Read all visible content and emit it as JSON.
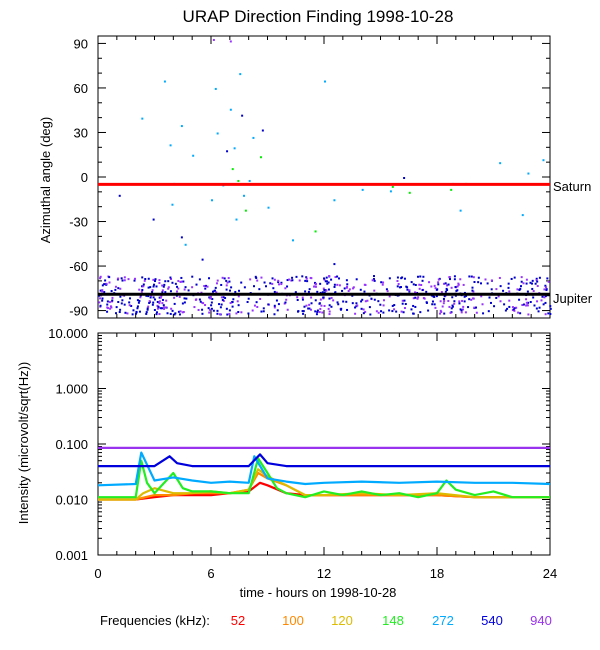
{
  "chart_data": [
    {
      "type": "scatter",
      "title": "URAP Direction Finding  1998-10-28",
      "ylabel": "Azimuthal angle (deg)",
      "xlim": [
        0,
        24
      ],
      "ylim": [
        -95,
        95
      ],
      "yticks": [
        "90",
        "60",
        "30",
        "0",
        "-30",
        "-60",
        "-90"
      ],
      "reference_lines": [
        {
          "label": "Saturn",
          "y": -5,
          "color": "#ff0000"
        },
        {
          "label": "Jupiter",
          "y": -79,
          "color": "#000000"
        }
      ],
      "series": [
        {
          "freq": "272",
          "color": "#00aaff",
          "points": [
            [
              2.3,
              40
            ],
            [
              3.5,
              65
            ],
            [
              3.8,
              22
            ],
            [
              4.0,
              -4
            ],
            [
              3.9,
              -18
            ],
            [
              4.4,
              35
            ],
            [
              4.6,
              -45
            ],
            [
              5.0,
              15
            ],
            [
              6.0,
              -15
            ],
            [
              6.2,
              60
            ],
            [
              6.3,
              30
            ],
            [
              6.6,
              -5
            ],
            [
              7.0,
              46
            ],
            [
              7.2,
              20
            ],
            [
              7.3,
              -28
            ],
            [
              7.5,
              70
            ],
            [
              7.7,
              -12
            ],
            [
              8.0,
              -2
            ],
            [
              8.2,
              27
            ],
            [
              9.0,
              -20
            ],
            [
              10.3,
              -42
            ],
            [
              12.0,
              65
            ],
            [
              12.5,
              -15
            ],
            [
              14.0,
              -8
            ],
            [
              15.5,
              -9
            ],
            [
              18.8,
              -4
            ],
            [
              19.2,
              -22
            ],
            [
              21.3,
              10
            ],
            [
              22.5,
              -25
            ],
            [
              22.8,
              3
            ],
            [
              23.6,
              12
            ]
          ]
        },
        {
          "freq": "540",
          "color": "#0000cc",
          "points": [
            [
              1.1,
              -12
            ],
            [
              2.9,
              -28
            ],
            [
              4.4,
              -40
            ],
            [
              5.5,
              -55
            ],
            [
              6.8,
              18
            ],
            [
              7.6,
              42
            ],
            [
              8.7,
              32
            ],
            [
              12.5,
              -58
            ],
            [
              16.2,
              0
            ]
          ]
        },
        {
          "freq": "148",
          "color": "#00ee00",
          "points": [
            [
              7.1,
              6
            ],
            [
              7.4,
              -2
            ],
            [
              7.8,
              -22
            ],
            [
              8.6,
              14
            ],
            [
              11.5,
              -36
            ],
            [
              15.6,
              -6
            ],
            [
              16.5,
              -10
            ],
            [
              18.7,
              -8
            ],
            [
              19.5,
              -4
            ]
          ]
        },
        {
          "freq": "940",
          "color": "#9933ff",
          "points": [
            [
              6.1,
              93
            ],
            [
              7.0,
              92
            ]
          ]
        }
      ]
    },
    {
      "type": "line",
      "ylabel": "Intensity (microvolt/sqrt(Hz))",
      "xlabel": "time - hours on 1998-10-28",
      "xlim": [
        0,
        24
      ],
      "ylim": [
        0.001,
        10
      ],
      "yscale": "log",
      "xticks": [
        "0",
        "6",
        "12",
        "18",
        "24"
      ],
      "yticks": [
        "10.000",
        "1.000",
        "0.100",
        "0.010",
        "0.001"
      ],
      "series": [
        {
          "freq": "52",
          "color": "#ff0000",
          "x": [
            0,
            2,
            3,
            4,
            6,
            7,
            8,
            8.6,
            9,
            10,
            11,
            12,
            14,
            16,
            18,
            20,
            22,
            24
          ],
          "y": [
            0.01,
            0.01,
            0.011,
            0.012,
            0.012,
            0.013,
            0.014,
            0.02,
            0.018,
            0.013,
            0.012,
            0.012,
            0.012,
            0.012,
            0.012,
            0.011,
            0.011,
            0.011
          ]
        },
        {
          "freq": "100",
          "color": "#ff8800",
          "x": [
            0,
            2,
            3,
            4,
            5,
            6,
            7,
            8,
            8.5,
            9,
            10,
            11,
            12,
            14,
            16,
            18,
            20,
            22,
            24
          ],
          "y": [
            0.01,
            0.01,
            0.012,
            0.012,
            0.013,
            0.013,
            0.013,
            0.015,
            0.03,
            0.024,
            0.018,
            0.012,
            0.012,
            0.012,
            0.012,
            0.012,
            0.011,
            0.011,
            0.011
          ]
        },
        {
          "freq": "120",
          "color": "#ddbb00",
          "x": [
            0,
            2,
            2.4,
            3,
            4,
            5,
            6,
            7,
            8,
            8.5,
            9,
            10,
            11,
            12,
            14,
            16,
            18,
            20,
            22,
            24
          ],
          "y": [
            0.01,
            0.01,
            0.013,
            0.016,
            0.013,
            0.013,
            0.014,
            0.013,
            0.015,
            0.035,
            0.026,
            0.018,
            0.012,
            0.012,
            0.013,
            0.012,
            0.013,
            0.011,
            0.011,
            0.011
          ]
        },
        {
          "freq": "148",
          "color": "#22ee22",
          "x": [
            0,
            2,
            2.3,
            2.6,
            3,
            4,
            4.5,
            5,
            6,
            7,
            8,
            8.5,
            9,
            9.5,
            10,
            11,
            12,
            13,
            14,
            15,
            16,
            17,
            18,
            18.5,
            19,
            20,
            21,
            22,
            23,
            24
          ],
          "y": [
            0.011,
            0.011,
            0.05,
            0.02,
            0.013,
            0.03,
            0.016,
            0.014,
            0.014,
            0.013,
            0.013,
            0.055,
            0.03,
            0.016,
            0.013,
            0.011,
            0.014,
            0.012,
            0.014,
            0.012,
            0.013,
            0.011,
            0.013,
            0.022,
            0.015,
            0.012,
            0.014,
            0.011,
            0.011,
            0.011
          ]
        },
        {
          "freq": "272",
          "color": "#00aaff",
          "x": [
            0,
            2,
            2.3,
            3,
            4,
            5,
            6,
            7,
            8,
            8.3,
            9,
            10,
            11,
            12,
            14,
            16,
            18,
            20,
            22,
            24
          ],
          "y": [
            0.018,
            0.019,
            0.07,
            0.022,
            0.025,
            0.022,
            0.02,
            0.021,
            0.02,
            0.06,
            0.024,
            0.021,
            0.019,
            0.02,
            0.021,
            0.02,
            0.021,
            0.02,
            0.02,
            0.019
          ]
        },
        {
          "freq": "540",
          "color": "#0000dd",
          "x": [
            0,
            2,
            3,
            3.8,
            4.2,
            5,
            6,
            7,
            8,
            8.6,
            9,
            10,
            12,
            14,
            16,
            18,
            20,
            22,
            24
          ],
          "y": [
            0.04,
            0.04,
            0.04,
            0.06,
            0.045,
            0.04,
            0.04,
            0.04,
            0.04,
            0.065,
            0.045,
            0.04,
            0.04,
            0.04,
            0.04,
            0.04,
            0.04,
            0.04,
            0.04
          ]
        },
        {
          "freq": "940",
          "color": "#9933ee",
          "x": [
            0,
            4,
            8,
            12,
            16,
            20,
            24
          ],
          "y": [
            0.085,
            0.085,
            0.085,
            0.085,
            0.085,
            0.085,
            0.085
          ]
        }
      ]
    }
  ],
  "legend": {
    "title": "Frequencies (kHz):",
    "items": [
      {
        "label": "52",
        "color": "#ff0000"
      },
      {
        "label": "100",
        "color": "#ff8800"
      },
      {
        "label": "120",
        "color": "#ddbb00"
      },
      {
        "label": "148",
        "color": "#22ee22"
      },
      {
        "label": "272",
        "color": "#00aaff"
      },
      {
        "label": "540",
        "color": "#0000dd"
      },
      {
        "label": "940",
        "color": "#9933ee"
      }
    ]
  }
}
